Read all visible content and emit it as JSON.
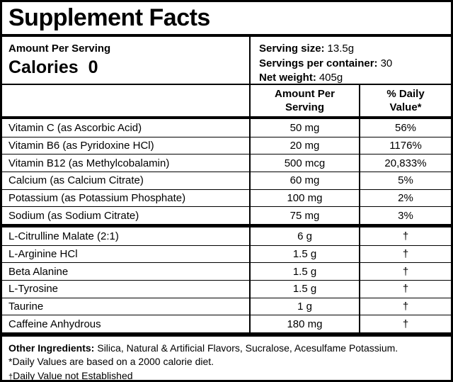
{
  "title": "Supplement Facts",
  "serving_info": {
    "amount_per_serving_label": "Amount Per Serving",
    "calories_label": "Calories",
    "calories_value": "0",
    "serving_size_label": "Serving size:",
    "serving_size_value": "13.5g",
    "servings_per_container_label": "Servings per container:",
    "servings_per_container_value": "30",
    "net_weight_label": "Net weight:",
    "net_weight_value": "405g"
  },
  "table": {
    "amount_header": "Amount Per Serving",
    "daily_value_header": "% Daily Value*",
    "rows": [
      {
        "name": "Vitamin C (as Ascorbic Acid)",
        "amount": "50 mg",
        "dv": "56%"
      },
      {
        "name": "Vitamin B6 (as Pyridoxine HCl)",
        "amount": "20 mg",
        "dv": "1176%"
      },
      {
        "name": "Vitamin B12 (as Methylcobalamin)",
        "amount": "500 mcg",
        "dv": "20,833%"
      },
      {
        "name": "Calcium (as Calcium Citrate)",
        "amount": "60 mg",
        "dv": "5%"
      },
      {
        "name": "Potassium (as Potassium Phosphate)",
        "amount": "100 mg",
        "dv": "2%"
      },
      {
        "name": "Sodium (as Sodium Citrate)",
        "amount": "75 mg",
        "dv": "3%"
      },
      {
        "name": "L-Citrulline Malate (2:1)",
        "amount": "6 g",
        "dv": "†"
      },
      {
        "name": "L-Arginine HCl",
        "amount": "1.5 g",
        "dv": "†"
      },
      {
        "name": "Beta Alanine",
        "amount": "1.5 g",
        "dv": "†"
      },
      {
        "name": "L-Tyrosine",
        "amount": "1.5 g",
        "dv": "†"
      },
      {
        "name": "Taurine",
        "amount": "1 g",
        "dv": "†"
      },
      {
        "name": "Caffeine Anhydrous",
        "amount": "180 mg",
        "dv": "†"
      }
    ]
  },
  "footer": {
    "other_ingredients_label": "Other Ingredients:",
    "other_ingredients_value": "Silica, Natural & Artificial Flavors, Sucralose, Acesulfame Potassium.",
    "daily_values_note": "*Daily Values are based on a 2000 calorie diet.",
    "dv_not_established_symbol": "†",
    "dv_not_established_text": "Daily Value not Established"
  }
}
